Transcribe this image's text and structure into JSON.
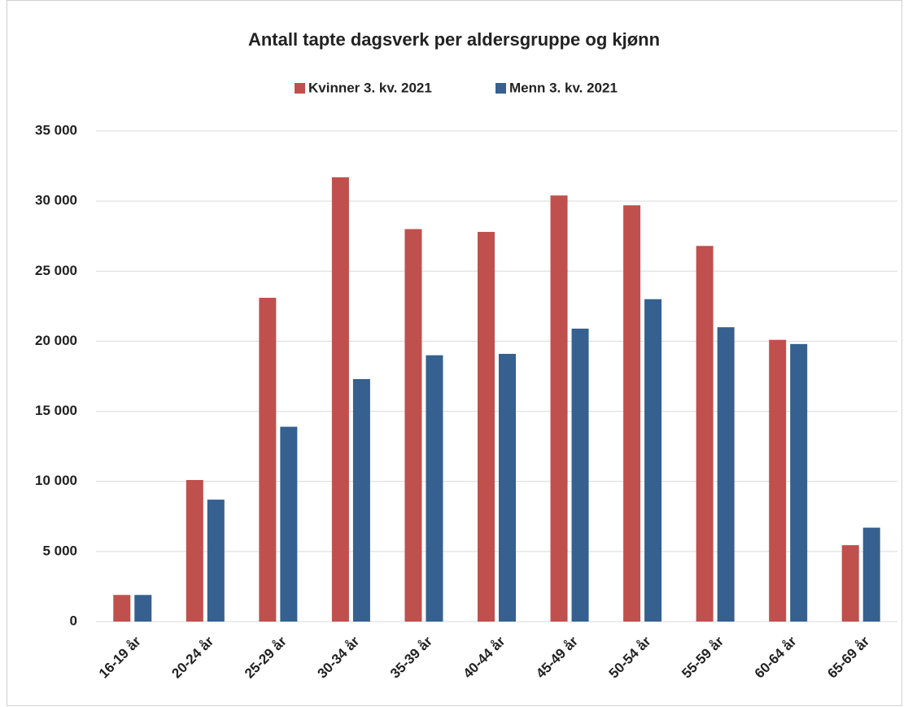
{
  "chart_data": {
    "type": "bar",
    "title": "Antall tapte dagsverk per aldersgruppe og kjønn",
    "categories": [
      "16-19 år",
      "20-24 år",
      "25-29 år",
      "30-34 år",
      "35-39 år",
      "40-44 år",
      "45-49 år",
      "50-54 år",
      "55-59 år",
      "60-64 år",
      "65-69 år"
    ],
    "series": [
      {
        "name": "Kvinner 3. kv. 2021",
        "color": "#c0504d",
        "values": [
          1900,
          10100,
          23100,
          31700,
          28000,
          27800,
          30400,
          29700,
          26800,
          20100,
          5450
        ]
      },
      {
        "name": "Menn 3. kv. 2021",
        "color": "#35608f",
        "values": [
          1900,
          8700,
          13900,
          17300,
          19000,
          19100,
          20900,
          23000,
          21000,
          19800,
          6700
        ]
      }
    ],
    "ylim": [
      0,
      35000
    ],
    "yticks": [
      0,
      {
        "value": 5000,
        "label": "5 000"
      },
      {
        "value": 10000,
        "label": "10 000"
      },
      {
        "value": 15000,
        "label": "15 000"
      },
      {
        "value": 20000,
        "label": "20 000"
      },
      {
        "value": 25000,
        "label": "25 000"
      },
      {
        "value": 30000,
        "label": "30 000"
      },
      {
        "value": 35000,
        "label": "35 000"
      }
    ],
    "grid": true,
    "legend": "top"
  }
}
